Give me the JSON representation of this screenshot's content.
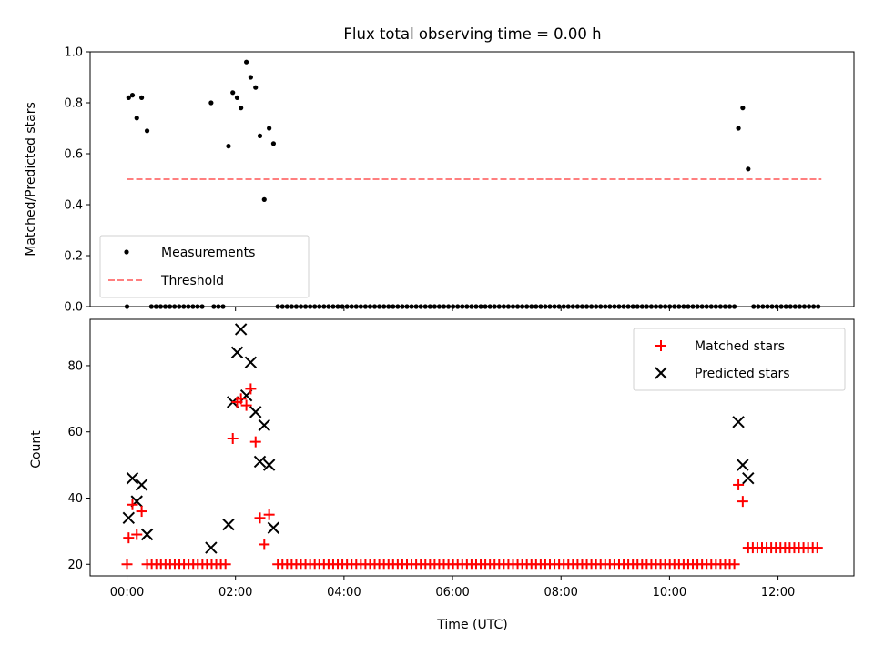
{
  "chart_data": [
    {
      "type": "scatter",
      "panel": "top",
      "title": "Flux total observing time = 0.00 h",
      "ylabel": "Matched/Predicted stars",
      "xlabel": "",
      "ylim": [
        0,
        1.0
      ],
      "yticks": [
        "0.0",
        "0.2",
        "0.4",
        "0.6",
        "0.8",
        "1.0"
      ],
      "legend_position": "lower-left",
      "series": [
        {
          "name": "Measurements",
          "marker": "dot",
          "color": "#000000",
          "points": [
            [
              0.03,
              0.82
            ],
            [
              0.1,
              0.83
            ],
            [
              0.18,
              0.74
            ],
            [
              0.27,
              0.82
            ],
            [
              0.37,
              0.69
            ],
            [
              1.55,
              0.8
            ],
            [
              1.87,
              0.63
            ],
            [
              1.95,
              0.84
            ],
            [
              2.03,
              0.82
            ],
            [
              2.1,
              0.78
            ],
            [
              2.2,
              0.96
            ],
            [
              2.28,
              0.9
            ],
            [
              2.37,
              0.86
            ],
            [
              2.45,
              0.67
            ],
            [
              2.53,
              0.42
            ],
            [
              2.62,
              0.7
            ],
            [
              2.7,
              0.64
            ],
            [
              11.27,
              0.7
            ],
            [
              11.35,
              0.78
            ],
            [
              11.45,
              0.54
            ]
          ],
          "zero_ranges": [
            [
              0.0,
              0.0
            ],
            [
              0.45,
              1.45
            ],
            [
              1.6,
              1.85
            ],
            [
              2.78,
              11.2
            ],
            [
              11.55,
              12.8
            ]
          ]
        },
        {
          "name": "Threshold",
          "marker": "dashed-line",
          "color": "#ff7f7f",
          "x": [
            0.0,
            12.8
          ],
          "y": [
            0.5,
            0.5
          ]
        }
      ]
    },
    {
      "type": "scatter",
      "panel": "bottom",
      "title": "",
      "ylabel": "Count",
      "xlabel": "Time (UTC)",
      "xlim": [
        -0.68,
        13.4
      ],
      "ylim": [
        16.5,
        94
      ],
      "yticks": [
        "20",
        "40",
        "60",
        "80"
      ],
      "xticks": [
        "00:00",
        "02:00",
        "04:00",
        "06:00",
        "08:00",
        "10:00",
        "12:00"
      ],
      "legend_position": "top-right",
      "series": [
        {
          "name": "Matched stars",
          "marker": "plus",
          "color": "#ff0000",
          "points": [
            [
              0.0,
              20
            ],
            [
              0.03,
              28
            ],
            [
              0.1,
              38
            ],
            [
              0.18,
              29
            ],
            [
              0.27,
              36
            ],
            [
              1.95,
              58
            ],
            [
              2.03,
              69
            ],
            [
              2.1,
              70
            ],
            [
              2.2,
              68
            ],
            [
              2.28,
              73
            ],
            [
              2.37,
              57
            ],
            [
              2.45,
              34
            ],
            [
              2.53,
              26
            ],
            [
              2.62,
              35
            ],
            [
              11.27,
              44
            ],
            [
              11.35,
              39
            ]
          ],
          "baseline_ranges": [
            {
              "from": 0.37,
              "to": 1.87,
              "value": 20
            },
            {
              "from": 2.78,
              "to": 11.2,
              "value": 20
            },
            {
              "from": 11.45,
              "to": 12.8,
              "value": 25
            }
          ]
        },
        {
          "name": "Predicted stars",
          "marker": "x",
          "color": "#000000",
          "points": [
            [
              0.03,
              34
            ],
            [
              0.1,
              46
            ],
            [
              0.18,
              39
            ],
            [
              0.27,
              44
            ],
            [
              0.37,
              29
            ],
            [
              1.55,
              25
            ],
            [
              1.87,
              32
            ],
            [
              1.95,
              69
            ],
            [
              2.03,
              84
            ],
            [
              2.1,
              91
            ],
            [
              2.2,
              71
            ],
            [
              2.28,
              81
            ],
            [
              2.37,
              66
            ],
            [
              2.45,
              51
            ],
            [
              2.53,
              62
            ],
            [
              2.62,
              50
            ],
            [
              2.7,
              31
            ],
            [
              11.27,
              63
            ],
            [
              11.35,
              50
            ],
            [
              11.45,
              46
            ]
          ]
        }
      ]
    }
  ]
}
